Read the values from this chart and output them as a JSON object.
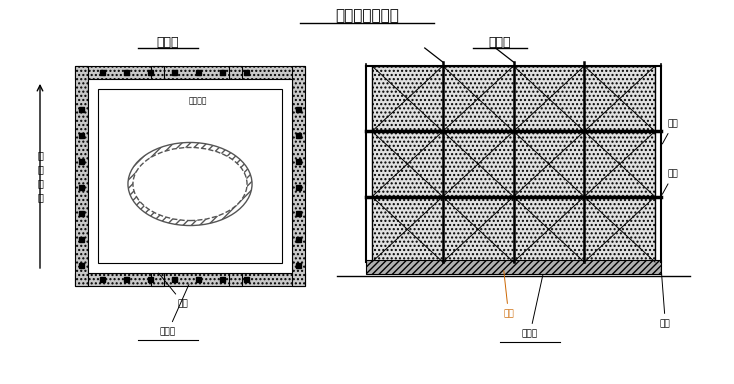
{
  "title": "承台暖棚示意图",
  "subtitle_left": "平面图",
  "subtitle_right": "立面图",
  "label_left_side": "线\n路\n方\n向",
  "bg_color": "#ffffff",
  "line_color": "#000000",
  "text_color": "#000000",
  "annotation_color_muzi": "#cc6600",
  "labels": {
    "baojumo_left": "枋椽等",
    "baojumo_right": "枋椽等",
    "limu_left": "立杆",
    "limu_right1": "横杆",
    "limu_right2": "立杆",
    "limu_right3": "立杆",
    "muzi": "垫木",
    "ruan_mould": "聚苯模型"
  }
}
